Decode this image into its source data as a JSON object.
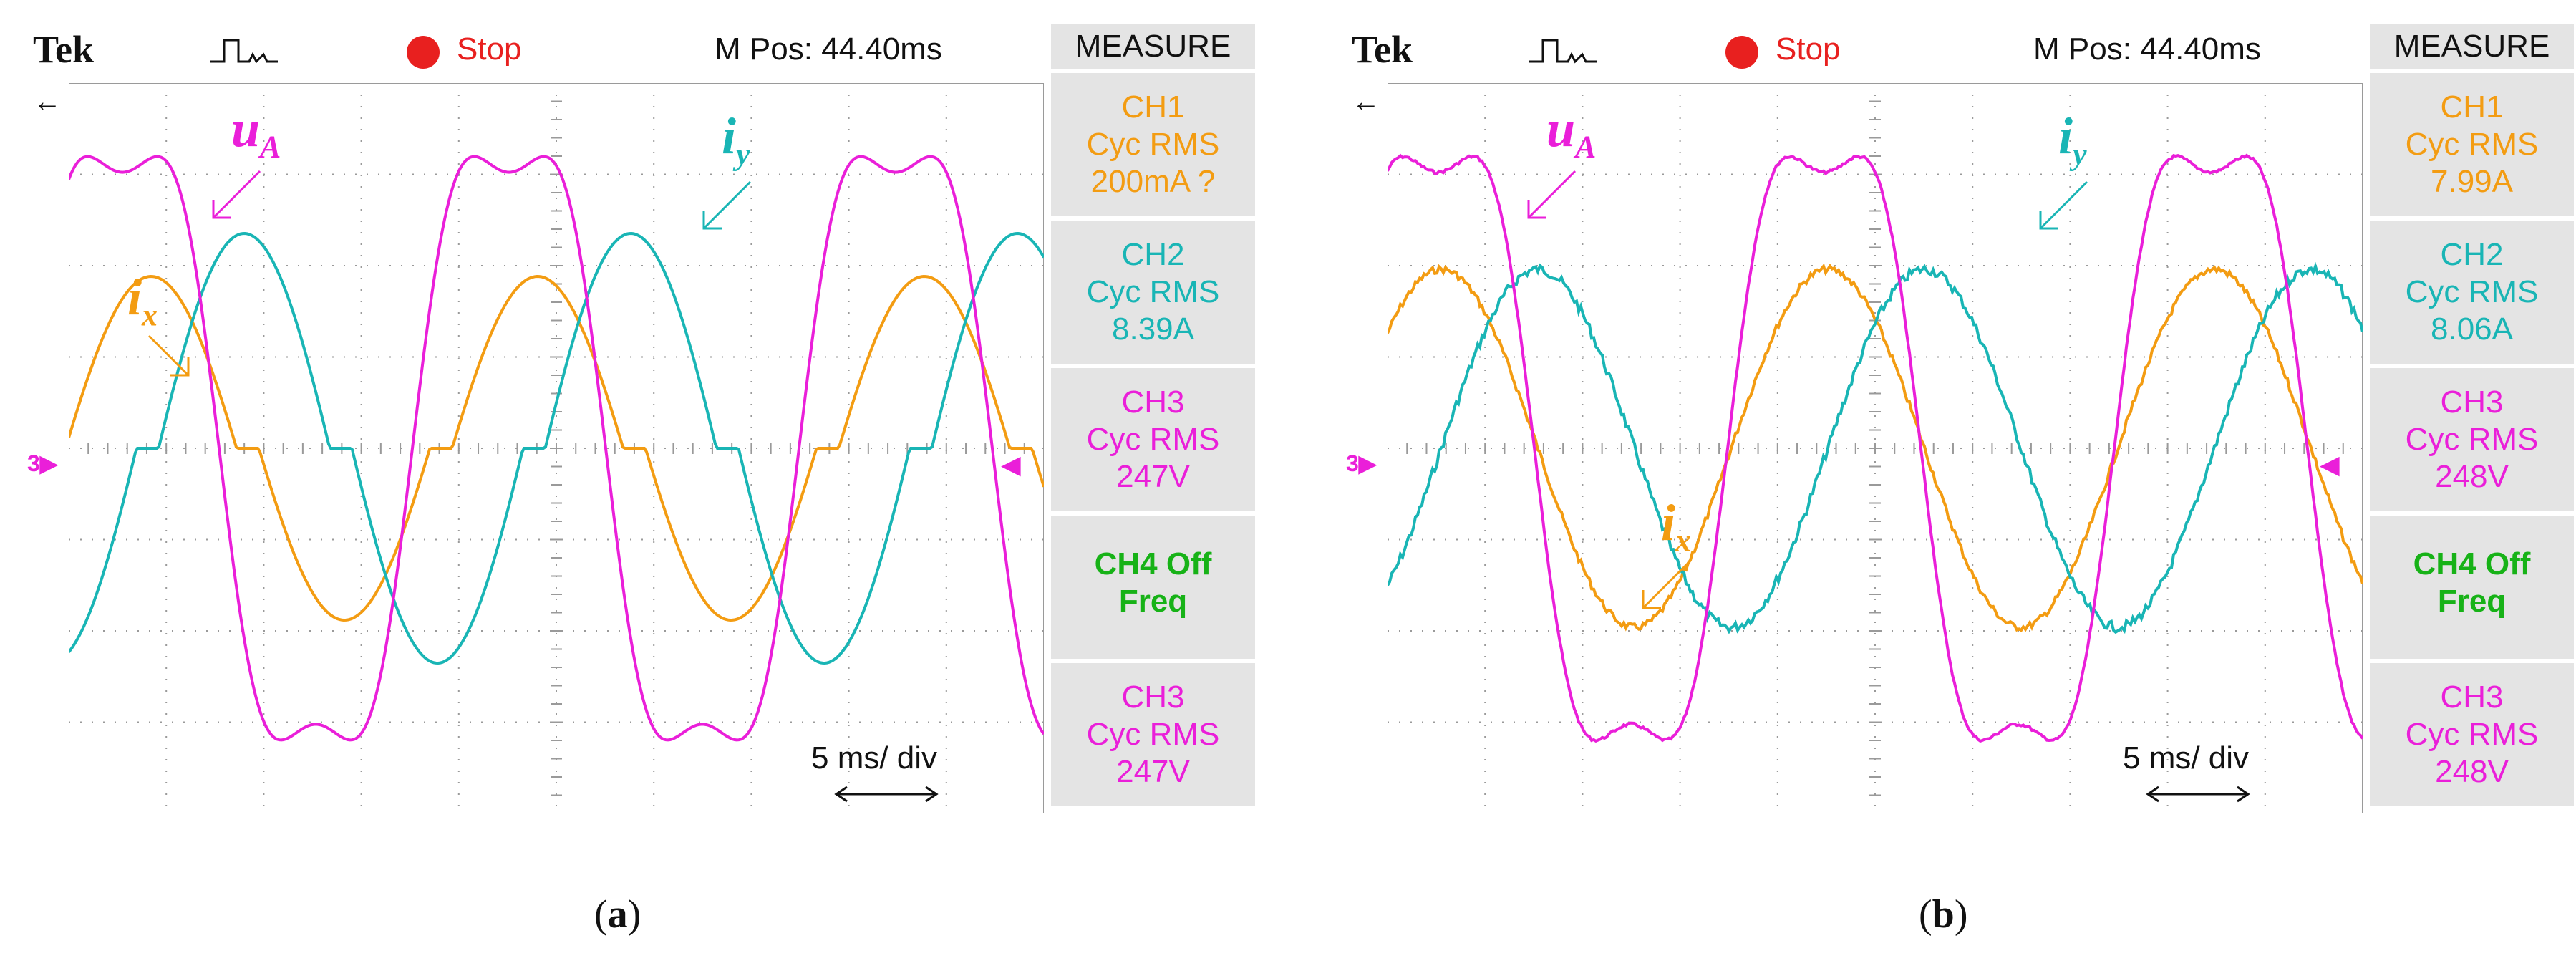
{
  "panels": [
    {
      "id": "a",
      "brand": "Tek",
      "status": "Stop",
      "mpos": "M Pos: 44.40ms",
      "measure_title": "MEASURE",
      "measurements": [
        {
          "lines": [
            "CH1",
            "Cyc RMS",
            "200mA ?"
          ],
          "color": "#f39c12"
        },
        {
          "lines": [
            "CH2",
            "Cyc RMS",
            "8.39A"
          ],
          "color": "#19b5b5"
        },
        {
          "lines": [
            "CH3",
            "Cyc RMS",
            "247V"
          ],
          "color": "#ea1fd9"
        },
        {
          "lines": [
            "CH4 Off",
            "Freq",
            ""
          ],
          "color": "#17b217"
        },
        {
          "lines": [
            "CH3",
            "Cyc RMS",
            "247V"
          ],
          "color": "#ea1fd9"
        }
      ],
      "timebase": "5 ms/ div",
      "labels": {
        "ua": "u",
        "ua_sub": "A",
        "iy": "i",
        "iy_sub": "y",
        "ix": "i",
        "ix_sub": "x"
      },
      "caption": "(a)",
      "caption_letter": "a"
    },
    {
      "id": "b",
      "brand": "Tek",
      "status": "Stop",
      "mpos": "M Pos: 44.40ms",
      "measure_title": "MEASURE",
      "measurements": [
        {
          "lines": [
            "CH1",
            "Cyc RMS",
            "7.99A"
          ],
          "color": "#f39c12"
        },
        {
          "lines": [
            "CH2",
            "Cyc RMS",
            "8.06A"
          ],
          "color": "#19b5b5"
        },
        {
          "lines": [
            "CH3",
            "Cyc RMS",
            "248V"
          ],
          "color": "#ea1fd9"
        },
        {
          "lines": [
            "CH4 Off",
            "Freq",
            ""
          ],
          "color": "#17b217"
        },
        {
          "lines": [
            "CH3",
            "Cyc RMS",
            "248V"
          ],
          "color": "#ea1fd9"
        }
      ],
      "timebase": "5 ms/ div",
      "labels": {
        "ua": "u",
        "ua_sub": "A",
        "iy": "i",
        "iy_sub": "y",
        "ix": "i",
        "ix_sub": "x"
      },
      "caption": "(b)",
      "caption_letter": "b"
    }
  ],
  "colors": {
    "ua": "#ea1fd9",
    "ix": "#f39c12",
    "iy": "#19b5b5",
    "grid": "#9a9a9a"
  }
}
